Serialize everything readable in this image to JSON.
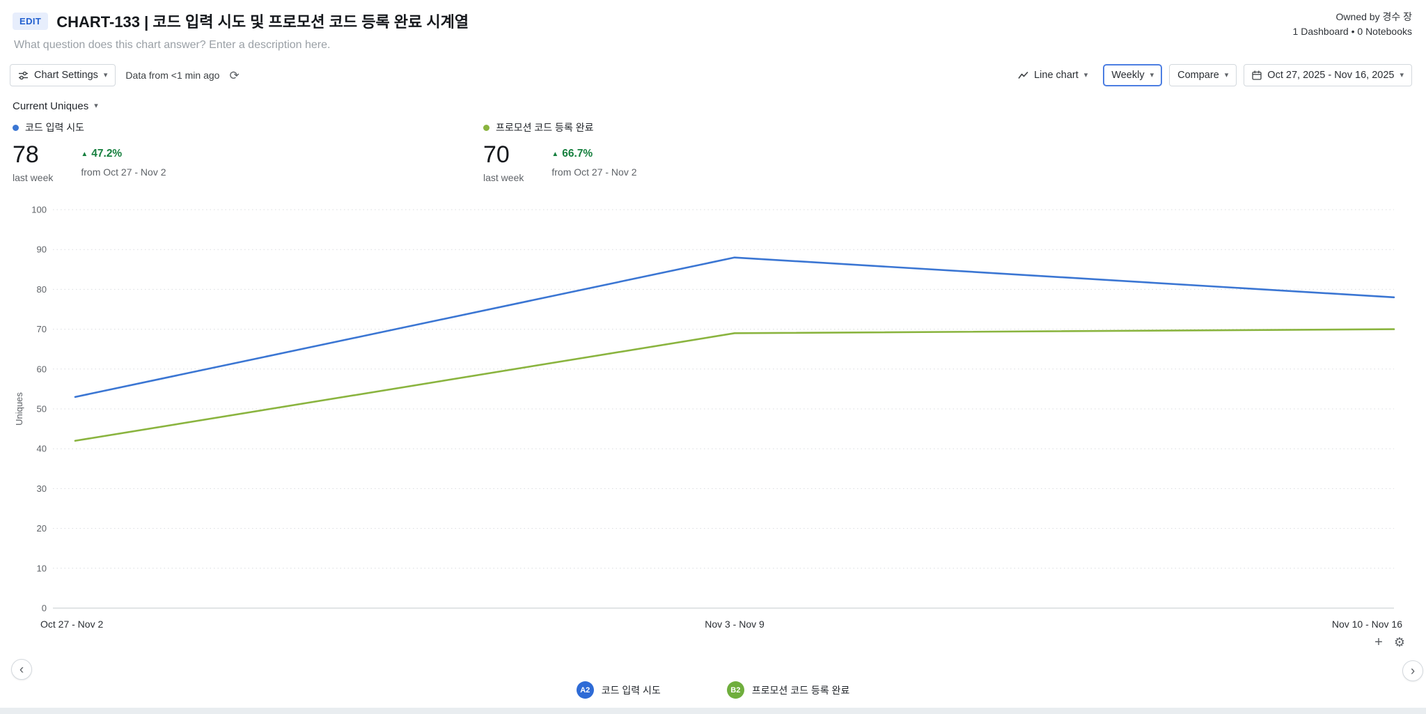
{
  "header": {
    "edit_badge": "EDIT",
    "title": "CHART-133 | 코드 입력 시도 및 프로모션 코드 등록 완료 시계열",
    "description_placeholder": "What question does this chart answer? Enter a description here.",
    "owned_by": "Owned by 경수 장",
    "usage_summary": "1 Dashboard • 0 Notebooks"
  },
  "toolbar": {
    "chart_settings": "Chart Settings",
    "data_freshness": "Data from <1 min ago",
    "chart_type": "Line chart",
    "interval": "Weekly",
    "compare": "Compare",
    "date_range": "Oct 27, 2025 - Nov 16, 2025"
  },
  "measure_selector": "Current Uniques",
  "metrics": [
    {
      "series_label": "코드 입력 시도",
      "color": "#3b76d3",
      "value": "78",
      "period": "last week",
      "delta": "47.2%",
      "delta_caption": "from Oct 27 - Nov 2"
    },
    {
      "series_label": "프로모션 코드 등록 완료",
      "color": "#8ab43f",
      "value": "70",
      "period": "last week",
      "delta": "66.7%",
      "delta_caption": "from Oct 27 - Nov 2"
    }
  ],
  "chart_data": {
    "type": "line",
    "x": [
      "Oct 27 - Nov 2",
      "Nov 3 - Nov 9",
      "Nov 10 - Nov 16"
    ],
    "series": [
      {
        "name": "코드 입력 시도",
        "color": "#3b76d3",
        "values": [
          53,
          88,
          78
        ]
      },
      {
        "name": "프로모션 코드 등록 완료",
        "color": "#8ab43f",
        "values": [
          42,
          69,
          70
        ]
      }
    ],
    "title": "",
    "xlabel": "",
    "ylabel": "Uniques",
    "ylim": [
      0,
      100
    ],
    "yticks": [
      0,
      10,
      20,
      30,
      40,
      50,
      60,
      70,
      80,
      90,
      100
    ],
    "grid": "horizontal-dotted",
    "legend_position": "bottom"
  },
  "chart_buttons": {
    "add": "+",
    "settings_gear": "⚙"
  },
  "bottom_legend": [
    {
      "badge": "A2",
      "color": "#2e6bd6",
      "label": "코드 입력 시도"
    },
    {
      "badge": "B2",
      "color": "#6fae3d",
      "label": "프로모션 코드 등록 완료"
    }
  ],
  "icons": {
    "chevron_down": "▾",
    "refresh": "⟳",
    "delta_up": "▲",
    "prev": "‹",
    "next": "›"
  }
}
